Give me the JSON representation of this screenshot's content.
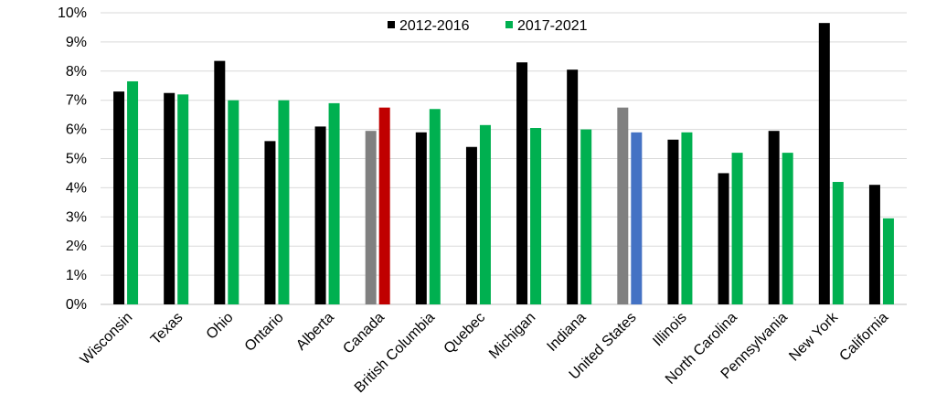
{
  "chart_data": {
    "type": "bar",
    "title": "",
    "xlabel": "",
    "ylabel": "",
    "ylim": [
      0,
      10
    ],
    "y_tick_labels": [
      "0%",
      "1%",
      "2%",
      "3%",
      "4%",
      "5%",
      "6%",
      "7%",
      "8%",
      "9%",
      "10%"
    ],
    "grid": true,
    "legend_position": "top-center",
    "categories": [
      "Wisconsin",
      "Texas",
      "Ohio",
      "Ontario",
      "Alberta",
      "Canada",
      "British Columbia",
      "Quebec",
      "Michigan",
      "Indiana",
      "United States",
      "Illinois",
      "North Carolina",
      "Pennsylvania",
      "New York",
      "California"
    ],
    "series": [
      {
        "name": "2012-2016",
        "color": "#000000",
        "values": [
          7.3,
          7.25,
          8.35,
          5.6,
          6.1,
          5.95,
          5.9,
          5.4,
          8.3,
          8.05,
          6.75,
          5.65,
          4.5,
          5.95,
          9.65,
          4.1
        ],
        "highlight_colors": {
          "Canada": "#808080",
          "United States": "#808080"
        }
      },
      {
        "name": "2017-2021",
        "color": "#00b050",
        "values": [
          7.65,
          7.2,
          7.0,
          7.0,
          6.9,
          6.75,
          6.7,
          6.15,
          6.05,
          6.0,
          5.9,
          5.9,
          5.2,
          5.2,
          4.2,
          2.95
        ],
        "highlight_colors": {
          "Canada": "#c00000",
          "United States": "#4472c4"
        }
      }
    ]
  }
}
